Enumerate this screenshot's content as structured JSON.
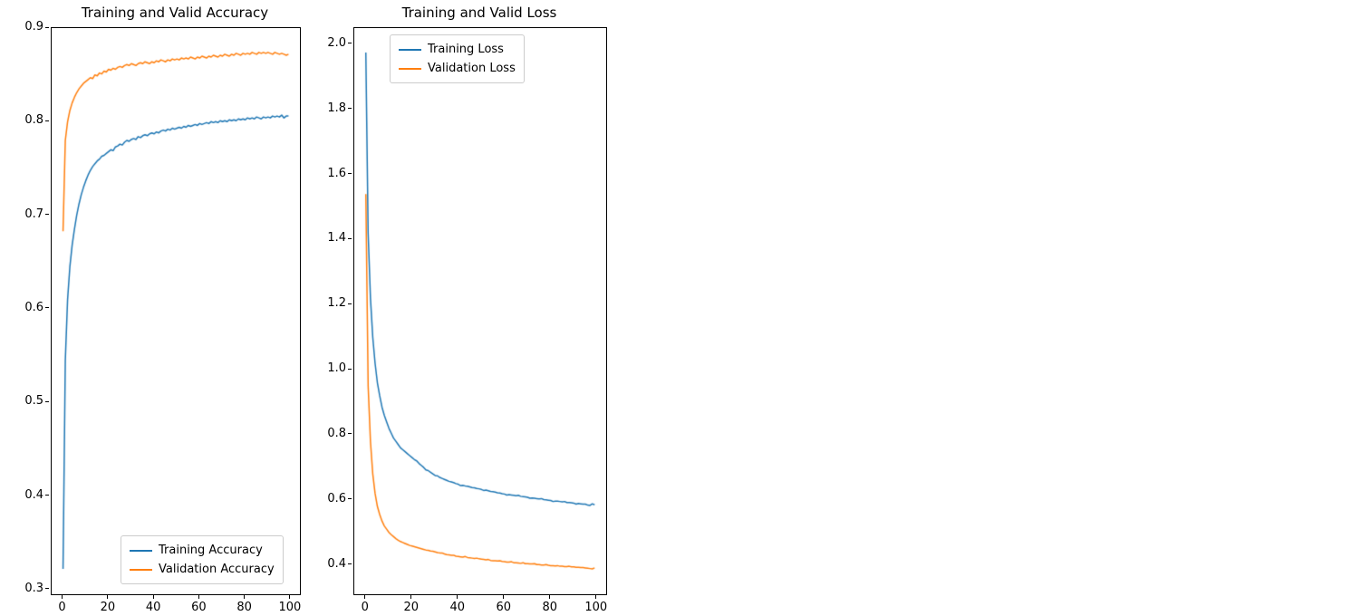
{
  "page": {
    "background": "#ffffff"
  },
  "chart_data": [
    {
      "type": "line",
      "title": "Training and Valid Accuracy",
      "xlabel": "",
      "ylabel": "",
      "xlim": [
        -5,
        104
      ],
      "ylim": [
        0.295,
        0.9
      ],
      "xticks": [
        0,
        20,
        40,
        60,
        80,
        100
      ],
      "yticks": [
        0.3,
        0.4,
        0.5,
        0.6,
        0.7,
        0.8,
        0.9
      ],
      "ytick_decimals": 1,
      "grid": false,
      "legend_position": "lower right",
      "x": [
        0,
        1,
        2,
        3,
        4,
        5,
        6,
        7,
        8,
        9,
        10,
        11,
        12,
        13,
        14,
        15,
        16,
        17,
        18,
        19,
        20,
        21,
        22,
        23,
        24,
        25,
        26,
        27,
        28,
        29,
        30,
        31,
        32,
        33,
        34,
        35,
        36,
        37,
        38,
        39,
        40,
        41,
        42,
        43,
        44,
        45,
        46,
        47,
        48,
        49,
        50,
        51,
        52,
        53,
        54,
        55,
        56,
        57,
        58,
        59,
        60,
        61,
        62,
        63,
        64,
        65,
        66,
        67,
        68,
        69,
        70,
        71,
        72,
        73,
        74,
        75,
        76,
        77,
        78,
        79,
        80,
        81,
        82,
        83,
        84,
        85,
        86,
        87,
        88,
        89,
        90,
        91,
        92,
        93,
        94,
        95,
        96,
        97,
        98,
        99
      ],
      "series": [
        {
          "name": "Training Accuracy",
          "color": "#1f77b4",
          "values": [
            0.322,
            0.545,
            0.61,
            0.645,
            0.668,
            0.685,
            0.7,
            0.712,
            0.722,
            0.73,
            0.737,
            0.743,
            0.748,
            0.752,
            0.755,
            0.758,
            0.76,
            0.763,
            0.764,
            0.766,
            0.768,
            0.77,
            0.769,
            0.773,
            0.774,
            0.776,
            0.775,
            0.778,
            0.78,
            0.779,
            0.781,
            0.782,
            0.781,
            0.784,
            0.783,
            0.785,
            0.786,
            0.785,
            0.787,
            0.788,
            0.787,
            0.789,
            0.788,
            0.79,
            0.791,
            0.79,
            0.792,
            0.791,
            0.793,
            0.792,
            0.793,
            0.794,
            0.793,
            0.795,
            0.794,
            0.796,
            0.795,
            0.796,
            0.797,
            0.796,
            0.798,
            0.797,
            0.798,
            0.799,
            0.798,
            0.8,
            0.799,
            0.8,
            0.799,
            0.801,
            0.8,
            0.801,
            0.8,
            0.802,
            0.801,
            0.802,
            0.801,
            0.803,
            0.802,
            0.803,
            0.802,
            0.804,
            0.803,
            0.804,
            0.803,
            0.805,
            0.804,
            0.803,
            0.805,
            0.804,
            0.805,
            0.804,
            0.806,
            0.805,
            0.806,
            0.805,
            0.807,
            0.804,
            0.806,
            0.806
          ]
        },
        {
          "name": "Validation Accuracy",
          "color": "#ff7f0e",
          "values": [
            0.683,
            0.78,
            0.8,
            0.812,
            0.82,
            0.826,
            0.831,
            0.835,
            0.838,
            0.841,
            0.843,
            0.845,
            0.847,
            0.846,
            0.85,
            0.849,
            0.852,
            0.851,
            0.854,
            0.853,
            0.856,
            0.855,
            0.857,
            0.856,
            0.858,
            0.859,
            0.858,
            0.86,
            0.861,
            0.86,
            0.862,
            0.861,
            0.86,
            0.862,
            0.863,
            0.862,
            0.864,
            0.863,
            0.862,
            0.864,
            0.863,
            0.865,
            0.864,
            0.866,
            0.865,
            0.864,
            0.866,
            0.865,
            0.867,
            0.866,
            0.867,
            0.866,
            0.868,
            0.867,
            0.868,
            0.867,
            0.869,
            0.868,
            0.867,
            0.869,
            0.868,
            0.87,
            0.869,
            0.868,
            0.87,
            0.869,
            0.871,
            0.87,
            0.869,
            0.871,
            0.87,
            0.872,
            0.871,
            0.87,
            0.872,
            0.871,
            0.873,
            0.872,
            0.871,
            0.873,
            0.872,
            0.873,
            0.872,
            0.874,
            0.873,
            0.872,
            0.874,
            0.873,
            0.874,
            0.873,
            0.874,
            0.873,
            0.872,
            0.874,
            0.873,
            0.872,
            0.873,
            0.872,
            0.871,
            0.872
          ]
        }
      ]
    },
    {
      "type": "line",
      "title": "Training and Valid Loss",
      "xlabel": "",
      "ylabel": "",
      "xlim": [
        -5,
        104
      ],
      "ylim": [
        0.31,
        2.05
      ],
      "xticks": [
        0,
        20,
        40,
        60,
        80,
        100
      ],
      "yticks": [
        0.4,
        0.6,
        0.8,
        1.0,
        1.2,
        1.4,
        1.6,
        1.8,
        2.0
      ],
      "ytick_decimals": 1,
      "grid": false,
      "legend_position": "upper center",
      "x": [
        0,
        1,
        2,
        3,
        4,
        5,
        6,
        7,
        8,
        9,
        10,
        11,
        12,
        13,
        14,
        15,
        16,
        17,
        18,
        19,
        20,
        21,
        22,
        23,
        24,
        25,
        26,
        27,
        28,
        29,
        30,
        31,
        32,
        33,
        34,
        35,
        36,
        37,
        38,
        39,
        40,
        41,
        42,
        43,
        44,
        45,
        46,
        47,
        48,
        49,
        50,
        51,
        52,
        53,
        54,
        55,
        56,
        57,
        58,
        59,
        60,
        61,
        62,
        63,
        64,
        65,
        66,
        67,
        68,
        69,
        70,
        71,
        72,
        73,
        74,
        75,
        76,
        77,
        78,
        79,
        80,
        81,
        82,
        83,
        84,
        85,
        86,
        87,
        88,
        89,
        90,
        91,
        92,
        93,
        94,
        95,
        96,
        97,
        98,
        99
      ],
      "series": [
        {
          "name": "Training Loss",
          "color": "#1f77b4",
          "values": [
            1.975,
            1.42,
            1.22,
            1.1,
            1.02,
            0.96,
            0.92,
            0.885,
            0.86,
            0.84,
            0.82,
            0.805,
            0.79,
            0.78,
            0.77,
            0.76,
            0.754,
            0.748,
            0.742,
            0.736,
            0.73,
            0.724,
            0.72,
            0.712,
            0.706,
            0.7,
            0.692,
            0.69,
            0.685,
            0.68,
            0.675,
            0.674,
            0.669,
            0.666,
            0.663,
            0.66,
            0.657,
            0.655,
            0.653,
            0.65,
            0.648,
            0.644,
            0.645,
            0.643,
            0.642,
            0.64,
            0.638,
            0.637,
            0.635,
            0.634,
            0.632,
            0.629,
            0.63,
            0.628,
            0.626,
            0.625,
            0.624,
            0.622,
            0.621,
            0.619,
            0.618,
            0.615,
            0.616,
            0.615,
            0.614,
            0.613,
            0.614,
            0.611,
            0.61,
            0.609,
            0.608,
            0.605,
            0.606,
            0.605,
            0.604,
            0.603,
            0.604,
            0.601,
            0.6,
            0.599,
            0.598,
            0.595,
            0.596,
            0.596,
            0.595,
            0.594,
            0.595,
            0.592,
            0.592,
            0.591,
            0.59,
            0.587,
            0.589,
            0.588,
            0.587,
            0.587,
            0.584,
            0.583,
            0.588,
            0.585
          ]
        },
        {
          "name": "Validation Loss",
          "color": "#ff7f0e",
          "values": [
            1.54,
            0.95,
            0.78,
            0.68,
            0.62,
            0.58,
            0.555,
            0.535,
            0.52,
            0.51,
            0.5,
            0.493,
            0.487,
            0.481,
            0.476,
            0.472,
            0.469,
            0.466,
            0.463,
            0.46,
            0.458,
            0.456,
            0.454,
            0.452,
            0.45,
            0.448,
            0.446,
            0.445,
            0.443,
            0.442,
            0.44,
            0.438,
            0.437,
            0.437,
            0.434,
            0.432,
            0.431,
            0.43,
            0.43,
            0.427,
            0.426,
            0.425,
            0.424,
            0.426,
            0.423,
            0.422,
            0.421,
            0.42,
            0.421,
            0.419,
            0.418,
            0.417,
            0.416,
            0.417,
            0.414,
            0.413,
            0.413,
            0.412,
            0.413,
            0.411,
            0.41,
            0.409,
            0.409,
            0.41,
            0.407,
            0.407,
            0.406,
            0.405,
            0.407,
            0.404,
            0.404,
            0.403,
            0.403,
            0.404,
            0.401,
            0.401,
            0.4,
            0.4,
            0.401,
            0.399,
            0.398,
            0.398,
            0.397,
            0.398,
            0.396,
            0.396,
            0.395,
            0.395,
            0.396,
            0.394,
            0.394,
            0.393,
            0.393,
            0.392,
            0.392,
            0.391,
            0.39,
            0.389,
            0.388,
            0.391
          ]
        }
      ]
    }
  ]
}
